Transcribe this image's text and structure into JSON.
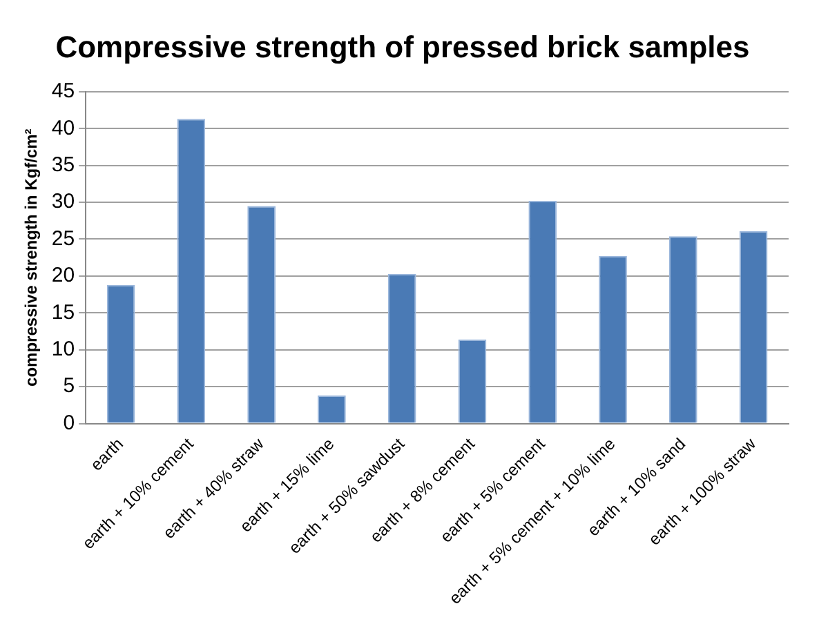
{
  "chart_data": {
    "type": "bar",
    "title": "Compressive strength of pressed brick samples",
    "ylabel": "compressive strength in Kgf/cm²",
    "categories": [
      "earth",
      "earth + 10% cement",
      "earth + 40% straw",
      "earth + 15% lime",
      "earth + 50% sawdust",
      "earth + 8% cement",
      "earth + 5% cement",
      "earth + 5% cement + 10% lime",
      "earth + 10% sand",
      "earth + 100% straw"
    ],
    "values": [
      18.8,
      41.3,
      29.5,
      3.8,
      20.3,
      11.4,
      30.2,
      22.7,
      25.4,
      26.1
    ],
    "color": "#4a7ab5",
    "ylim": [
      0,
      45
    ],
    "yticks": [
      0,
      5,
      10,
      15,
      20,
      25,
      30,
      35,
      40,
      45
    ],
    "grid": "y",
    "legend": false
  }
}
